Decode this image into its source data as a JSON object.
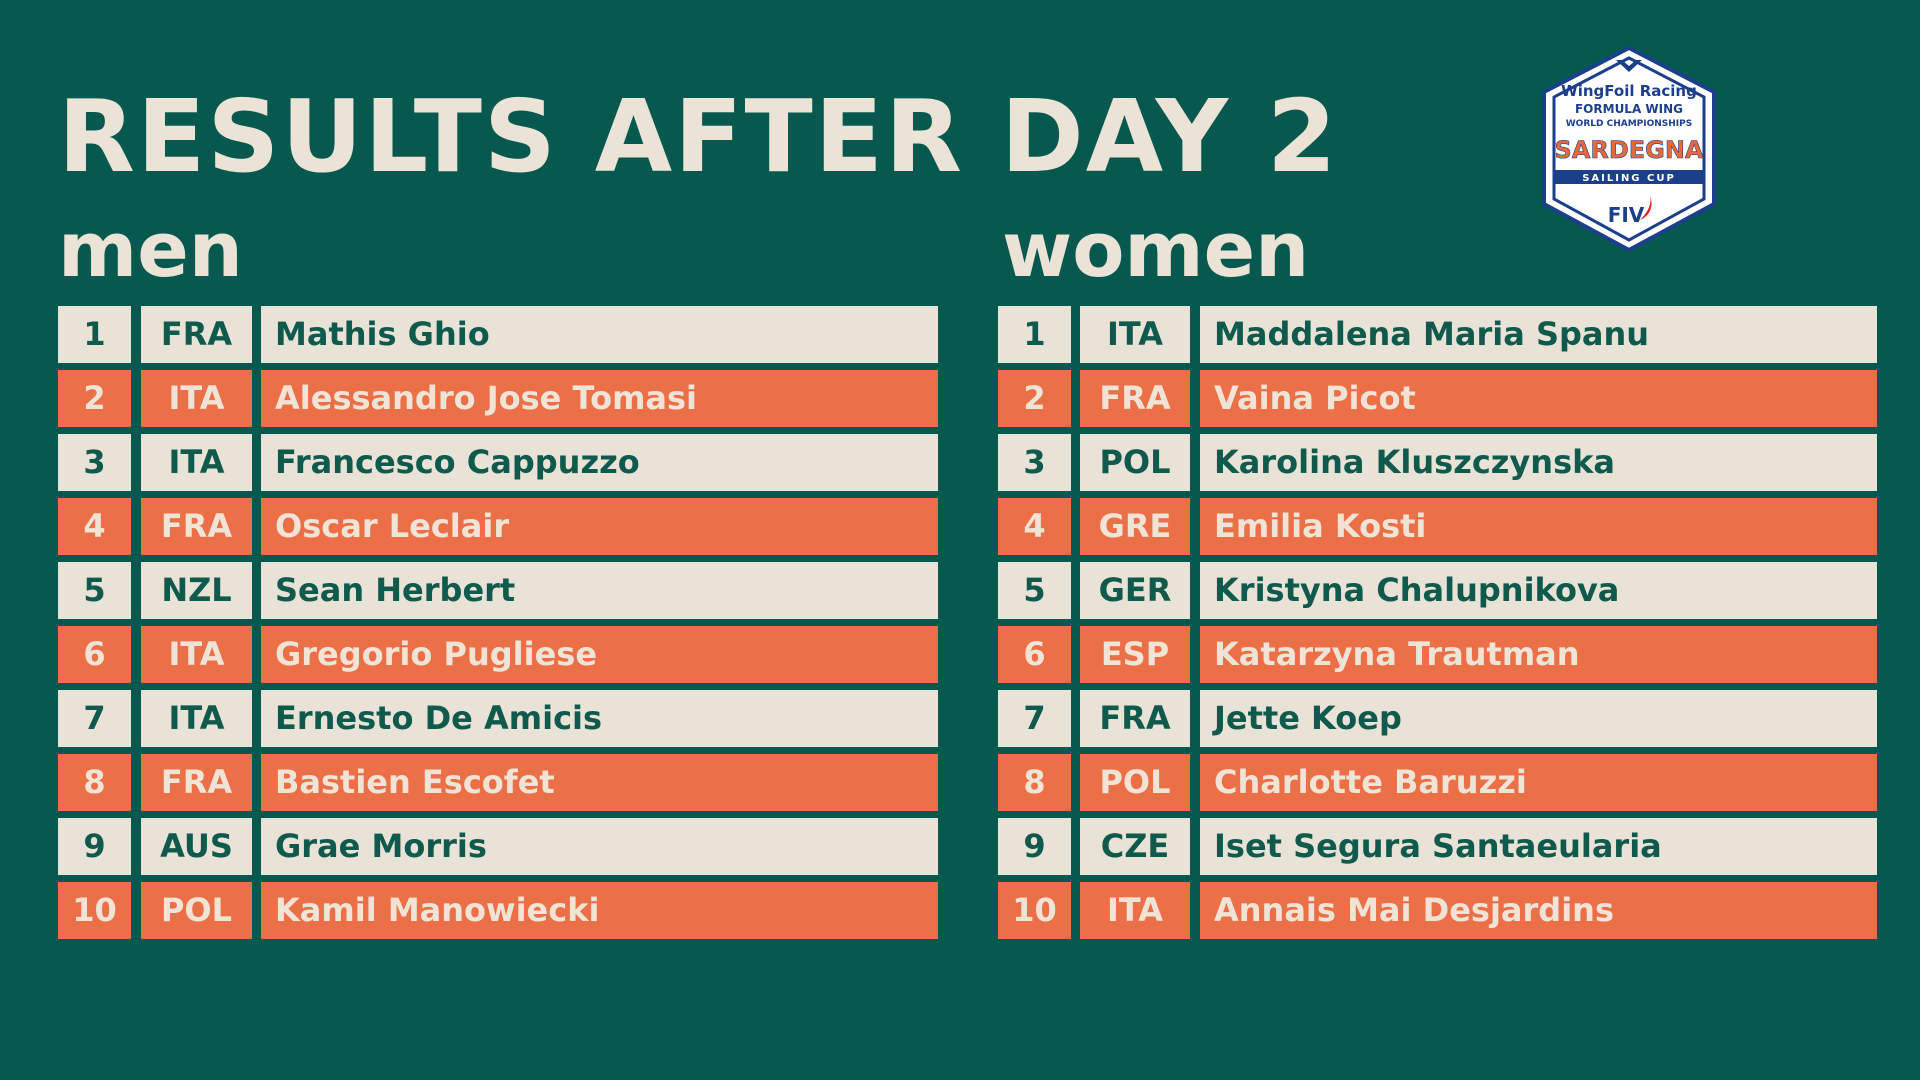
{
  "header": {
    "title": "RESULTS AFTER DAY 2"
  },
  "men": {
    "title": "men",
    "rows": [
      [
        "1",
        "FRA",
        "Mathis Ghio"
      ],
      [
        "2",
        "ITA",
        "Alessandro Jose Tomasi"
      ],
      [
        "3",
        "ITA",
        "Francesco Cappuzzo"
      ],
      [
        "4",
        "FRA",
        "Oscar Leclair"
      ],
      [
        "5",
        "NZL",
        "Sean Herbert"
      ],
      [
        "6",
        "ITA",
        "Gregorio Pugliese"
      ],
      [
        "7",
        "ITA",
        "Ernesto De Amicis"
      ],
      [
        "8",
        "FRA",
        "Bastien Escofet"
      ],
      [
        "9",
        "AUS",
        "Grae Morris"
      ],
      [
        "10",
        "POL",
        "Kamil Manowiecki"
      ]
    ]
  },
  "women": {
    "title": "women",
    "rows": [
      [
        "1",
        "ITA",
        "Maddalena Maria Spanu"
      ],
      [
        "2",
        "FRA",
        "Vaina Picot"
      ],
      [
        "3",
        "POL",
        "Karolina Kluszczynska"
      ],
      [
        "4",
        "GRE",
        "Emilia Kosti"
      ],
      [
        "5",
        "GER",
        "Kristyna Chalupnikova"
      ],
      [
        "6",
        "ESP",
        "Katarzyna Trautman"
      ],
      [
        "7",
        "FRA",
        "Jette Koep"
      ],
      [
        "8",
        "POL",
        "Charlotte Baruzzi"
      ],
      [
        "9",
        "CZE",
        "Iset Segura Santaeularia"
      ],
      [
        "10",
        "ITA",
        "Annais Mai Desjardins"
      ]
    ]
  },
  "logo": {
    "line1": "WingFoil Racing",
    "line2": "FORMULA WING",
    "line3": "WORLD CHAMPIONSHIPS",
    "line4": "SARDEGNA",
    "line5": "SAILING CUP",
    "line6": "FIV"
  }
}
